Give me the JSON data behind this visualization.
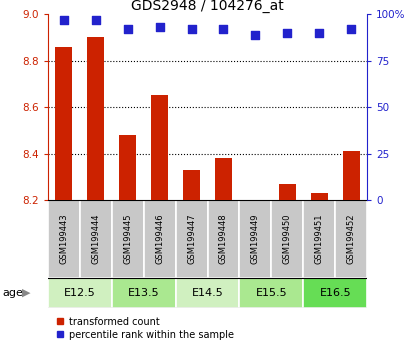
{
  "title": "GDS2948 / 104276_at",
  "samples": [
    "GSM199443",
    "GSM199444",
    "GSM199445",
    "GSM199446",
    "GSM199447",
    "GSM199448",
    "GSM199449",
    "GSM199450",
    "GSM199451",
    "GSM199452"
  ],
  "red_values": [
    8.86,
    8.9,
    8.48,
    8.65,
    8.33,
    8.38,
    8.2,
    8.27,
    8.23,
    8.41
  ],
  "blue_values": [
    97,
    97,
    92,
    93,
    92,
    92,
    89,
    90,
    90,
    92
  ],
  "ylim_left": [
    8.2,
    9.0
  ],
  "ylim_right": [
    0,
    100
  ],
  "yticks_left": [
    8.2,
    8.4,
    8.6,
    8.8,
    9.0
  ],
  "yticks_right": [
    0,
    25,
    50,
    75,
    100
  ],
  "ytick_labels_right": [
    "0",
    "25",
    "50",
    "75",
    "100%"
  ],
  "grid_lines": [
    8.4,
    8.6,
    8.8
  ],
  "groups": [
    {
      "label": "E12.5",
      "indices": [
        0,
        1
      ],
      "color": "#d0f0c0"
    },
    {
      "label": "E13.5",
      "indices": [
        2,
        3
      ],
      "color": "#aae890"
    },
    {
      "label": "E14.5",
      "indices": [
        4,
        5
      ],
      "color": "#d0f0c0"
    },
    {
      "label": "E15.5",
      "indices": [
        6,
        7
      ],
      "color": "#aae890"
    },
    {
      "label": "E16.5",
      "indices": [
        8,
        9
      ],
      "color": "#66dd55"
    }
  ],
  "bar_color": "#cc2200",
  "dot_color": "#2222cc",
  "bar_bottom": 8.2,
  "bar_width": 0.55,
  "sample_box_color": "#c8c8c8",
  "legend_items": [
    {
      "label": "transformed count",
      "color": "#cc2200"
    },
    {
      "label": "percentile rank within the sample",
      "color": "#2222cc"
    }
  ]
}
